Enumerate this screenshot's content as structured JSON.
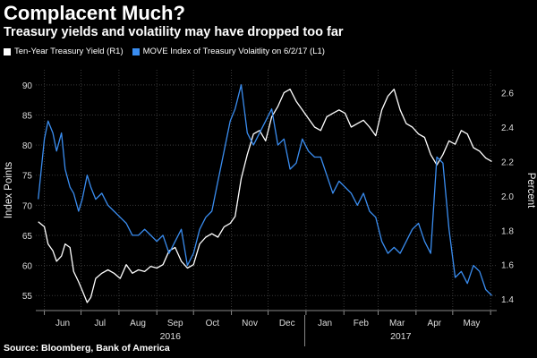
{
  "header": {
    "title": "Complacent Much?",
    "subtitle": "Treasury yields and volatility may have dropped too far"
  },
  "legend": [
    {
      "label": "Ten-Year Treasury Yield (R1)",
      "color": "#ffffff"
    },
    {
      "label": "MOVE Index of Treasury Volaitlity on 6/2/17 (L1)",
      "color": "#3a8df0"
    }
  ],
  "footer": {
    "source": "Source: Bloomberg, Bank of America"
  },
  "chart_data": {
    "type": "line",
    "ylabel_left": "Index Points",
    "ylabel_right": "Percent",
    "ylim_left": [
      52.5,
      92.5
    ],
    "ylim_right": [
      1.333,
      2.733
    ],
    "yticks_left": [
      "55",
      "60",
      "65",
      "70",
      "75",
      "80",
      "85",
      "90"
    ],
    "yticks_right": [
      "1.4",
      "1.6",
      "1.8",
      "2.0",
      "2.2",
      "2.4",
      "2.6"
    ],
    "months": [
      "Jun",
      "Jul",
      "Aug",
      "Sep",
      "Oct",
      "Nov",
      "Dec",
      "Jan",
      "Feb",
      "Mar",
      "Apr",
      "May"
    ],
    "years": [
      "2016",
      "2017"
    ],
    "grid": true,
    "series": [
      {
        "name": "Ten-Year Treasury Yield (R1)",
        "axis": "right",
        "color": "#ffffff",
        "x": [
          "2016-05-27",
          "2016-06-01",
          "2016-06-04",
          "2016-06-08",
          "2016-06-11",
          "2016-06-15",
          "2016-06-18",
          "2016-06-22",
          "2016-06-25",
          "2016-06-29",
          "2016-07-02",
          "2016-07-06",
          "2016-07-09",
          "2016-07-13",
          "2016-07-18",
          "2016-07-23",
          "2016-07-28",
          "2016-08-02",
          "2016-08-07",
          "2016-08-12",
          "2016-08-17",
          "2016-08-22",
          "2016-08-27",
          "2016-09-01",
          "2016-09-06",
          "2016-09-11",
          "2016-09-16",
          "2016-09-21",
          "2016-09-26",
          "2016-10-01",
          "2016-10-06",
          "2016-10-11",
          "2016-10-16",
          "2016-10-21",
          "2016-10-26",
          "2016-10-31",
          "2016-11-04",
          "2016-11-09",
          "2016-11-14",
          "2016-11-19",
          "2016-11-24",
          "2016-11-29",
          "2016-12-04",
          "2016-12-09",
          "2016-12-14",
          "2016-12-19",
          "2016-12-24",
          "2016-12-29",
          "2017-01-03",
          "2017-01-08",
          "2017-01-13",
          "2017-01-18",
          "2017-01-23",
          "2017-01-28",
          "2017-02-02",
          "2017-02-07",
          "2017-02-12",
          "2017-02-17",
          "2017-02-22",
          "2017-02-27",
          "2017-03-04",
          "2017-03-09",
          "2017-03-14",
          "2017-03-19",
          "2017-03-24",
          "2017-03-29",
          "2017-04-03",
          "2017-04-08",
          "2017-04-13",
          "2017-04-18",
          "2017-04-23",
          "2017-04-28",
          "2017-05-03",
          "2017-05-08",
          "2017-05-13",
          "2017-05-18",
          "2017-05-23",
          "2017-05-28",
          "2017-06-02"
        ],
        "values": [
          1.85,
          1.82,
          1.72,
          1.68,
          1.62,
          1.65,
          1.72,
          1.7,
          1.56,
          1.5,
          1.45,
          1.38,
          1.41,
          1.52,
          1.55,
          1.57,
          1.55,
          1.52,
          1.6,
          1.55,
          1.57,
          1.56,
          1.59,
          1.58,
          1.6,
          1.68,
          1.7,
          1.62,
          1.58,
          1.6,
          1.72,
          1.76,
          1.78,
          1.76,
          1.82,
          1.84,
          1.88,
          2.1,
          2.24,
          2.36,
          2.38,
          2.32,
          2.46,
          2.52,
          2.6,
          2.62,
          2.55,
          2.5,
          2.45,
          2.4,
          2.38,
          2.46,
          2.48,
          2.5,
          2.48,
          2.4,
          2.42,
          2.44,
          2.4,
          2.35,
          2.5,
          2.58,
          2.62,
          2.5,
          2.42,
          2.4,
          2.36,
          2.34,
          2.24,
          2.18,
          2.24,
          2.32,
          2.3,
          2.38,
          2.36,
          2.28,
          2.26,
          2.22,
          2.2
        ]
      },
      {
        "name": "MOVE Index of Treasury Volaitlity on 6/2/17 (L1)",
        "axis": "left",
        "color": "#3a8df0",
        "x": [
          "2016-05-27",
          "2016-06-01",
          "2016-06-04",
          "2016-06-08",
          "2016-06-11",
          "2016-06-15",
          "2016-06-18",
          "2016-06-22",
          "2016-06-25",
          "2016-06-29",
          "2016-07-02",
          "2016-07-06",
          "2016-07-09",
          "2016-07-13",
          "2016-07-18",
          "2016-07-23",
          "2016-07-28",
          "2016-08-02",
          "2016-08-07",
          "2016-08-12",
          "2016-08-17",
          "2016-08-22",
          "2016-08-27",
          "2016-09-01",
          "2016-09-06",
          "2016-09-11",
          "2016-09-16",
          "2016-09-21",
          "2016-09-26",
          "2016-10-01",
          "2016-10-06",
          "2016-10-11",
          "2016-10-16",
          "2016-10-21",
          "2016-10-26",
          "2016-10-31",
          "2016-11-04",
          "2016-11-09",
          "2016-11-14",
          "2016-11-19",
          "2016-11-24",
          "2016-11-29",
          "2016-12-04",
          "2016-12-09",
          "2016-12-14",
          "2016-12-19",
          "2016-12-24",
          "2016-12-29",
          "2017-01-03",
          "2017-01-08",
          "2017-01-13",
          "2017-01-18",
          "2017-01-23",
          "2017-01-28",
          "2017-02-02",
          "2017-02-07",
          "2017-02-12",
          "2017-02-17",
          "2017-02-22",
          "2017-02-27",
          "2017-03-04",
          "2017-03-09",
          "2017-03-14",
          "2017-03-19",
          "2017-03-24",
          "2017-03-29",
          "2017-04-03",
          "2017-04-08",
          "2017-04-13",
          "2017-04-18",
          "2017-04-23",
          "2017-04-28",
          "2017-05-03",
          "2017-05-08",
          "2017-05-13",
          "2017-05-18",
          "2017-05-23",
          "2017-05-28",
          "2017-06-02"
        ],
        "values": [
          71,
          81,
          84,
          82,
          79,
          82,
          76,
          73,
          72,
          69,
          71,
          75,
          73,
          71,
          72,
          70,
          69,
          68,
          67,
          65,
          65,
          66,
          65,
          64,
          65,
          62,
          64,
          66,
          60,
          62,
          66,
          68,
          69,
          74,
          79,
          84,
          86,
          90,
          82,
          80,
          82,
          84,
          86,
          80,
          81,
          76,
          77,
          81,
          79,
          78,
          78,
          75,
          72,
          74,
          73,
          72,
          70,
          72,
          69,
          68,
          64,
          62,
          63,
          62,
          64,
          66,
          67,
          64,
          62,
          78,
          77,
          66,
          58,
          59,
          57,
          60,
          59,
          56,
          55
        ]
      }
    ]
  }
}
